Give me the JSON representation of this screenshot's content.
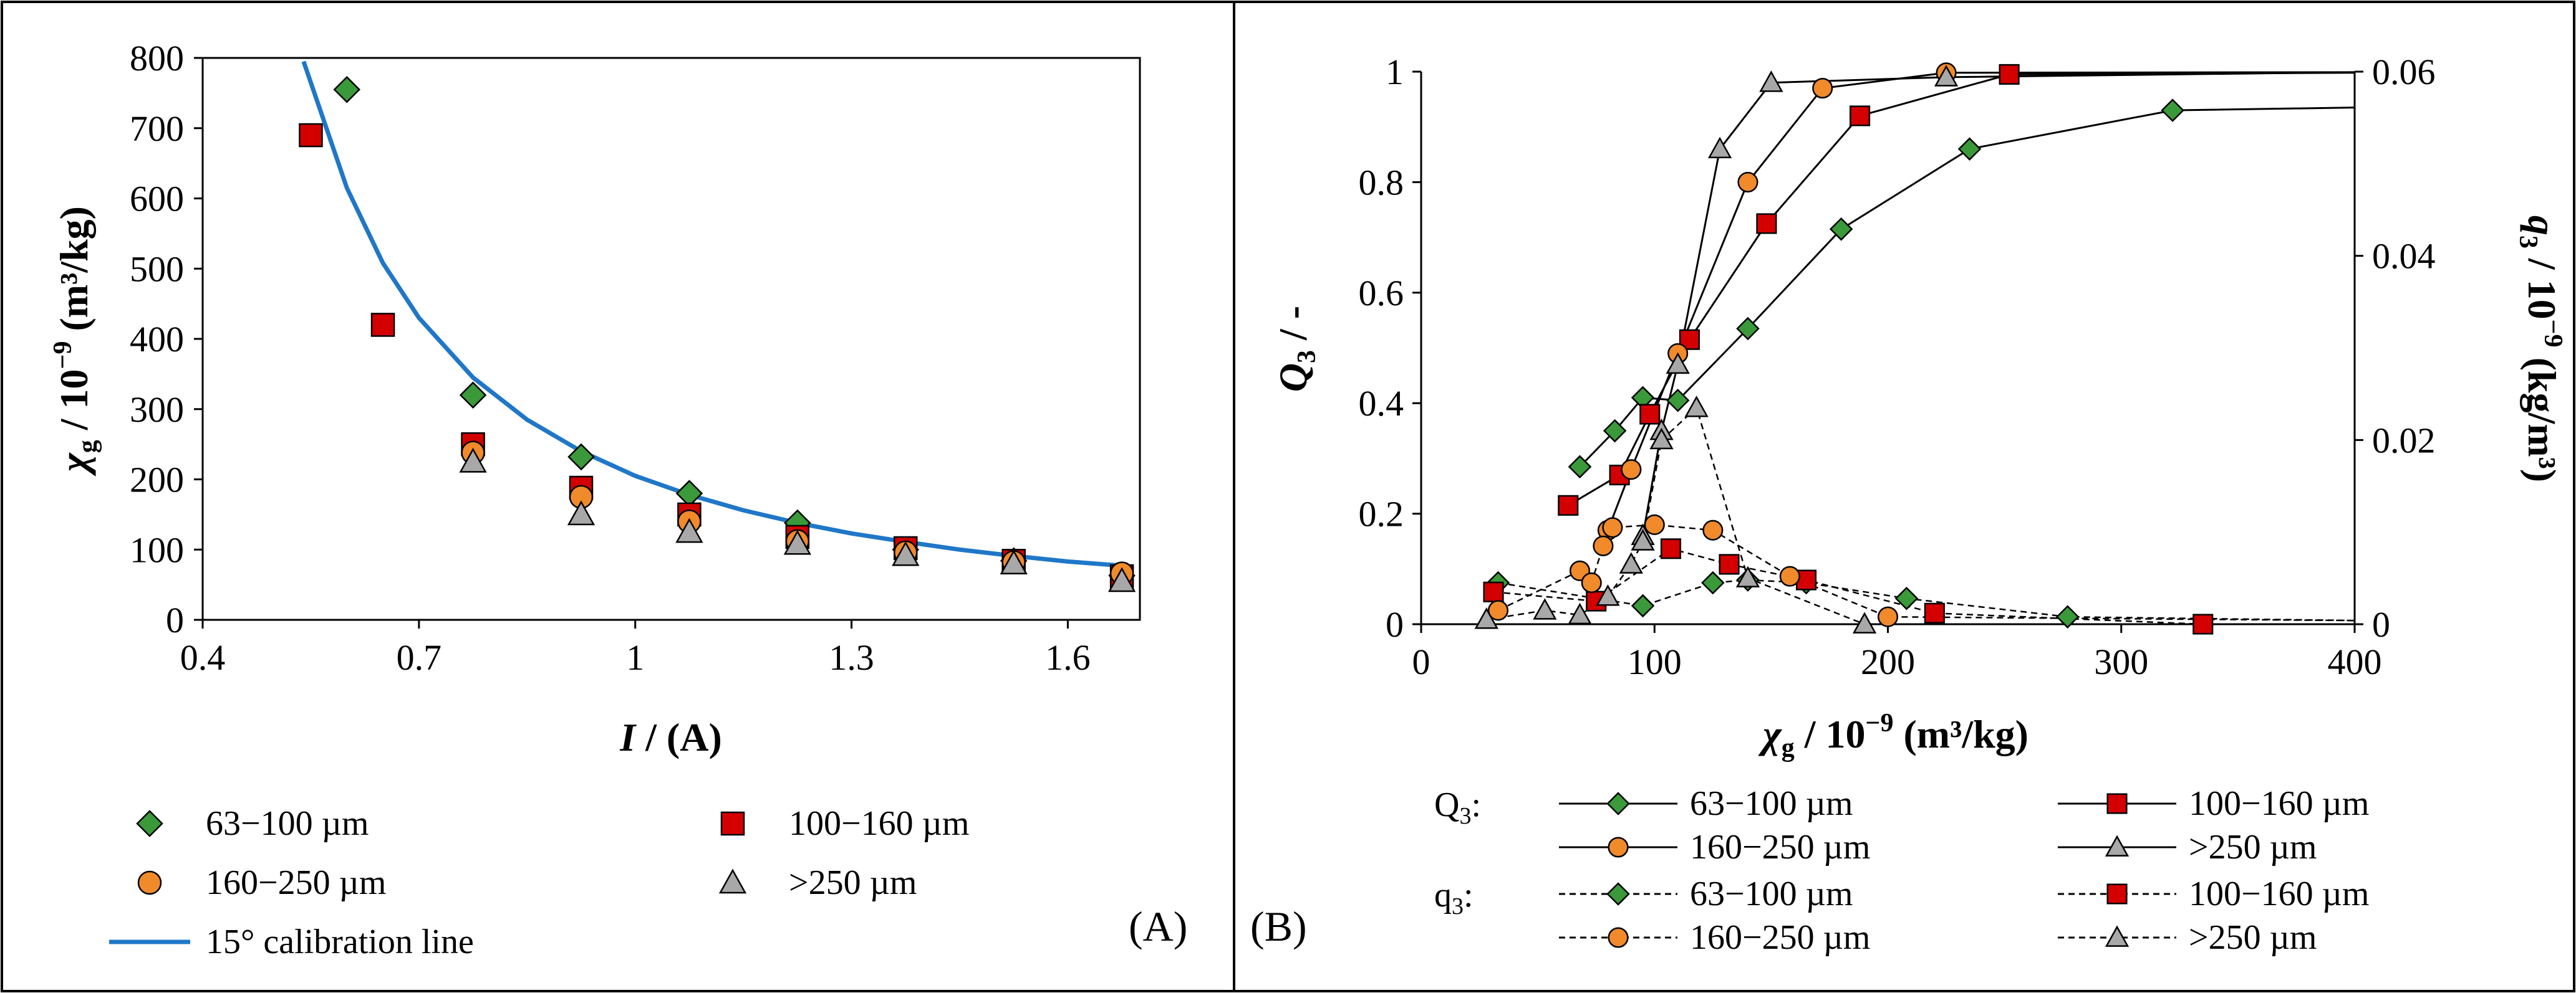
{
  "chart_data": [
    {
      "panel_label": "(A)",
      "type": "scatter",
      "xlabel_sym": "I",
      "xlabel_unit": " / (A)",
      "ylabel_sym": "χ",
      "ylabel_sub": "g",
      "ylabel_unit": " / 10",
      "ylabel_exp": "−9",
      "ylabel_tail": " (m³/kg)",
      "xlim": [
        0.4,
        1.7
      ],
      "ylim": [
        0,
        800
      ],
      "x_ticks": [
        "0.4",
        "0.7",
        "1",
        "1.3",
        "1.6"
      ],
      "y_ticks": [
        "0",
        "100",
        "200",
        "300",
        "400",
        "500",
        "600",
        "700",
        "800"
      ],
      "series": [
        {
          "name": "63−100 µm",
          "marker": "diamond",
          "color": "#3a9a3a",
          "x": [
            0.6,
            0.775,
            0.925,
            1.075,
            1.225,
            1.375,
            1.525,
            1.675
          ],
          "y": [
            755,
            320,
            232,
            180,
            138,
            100,
            84,
            63
          ]
        },
        {
          "name": "100−160 µm",
          "marker": "square",
          "color": "#d40000",
          "x": [
            0.55,
            0.65,
            0.775,
            0.925,
            1.075,
            1.225,
            1.375,
            1.525,
            1.675
          ],
          "y": [
            690,
            420,
            250,
            188,
            150,
            118,
            102,
            84,
            62
          ]
        },
        {
          "name": "160−250 µm",
          "marker": "circle",
          "color": "#f08a2a",
          "x": [
            0.775,
            0.925,
            1.075,
            1.225,
            1.375,
            1.525,
            1.675
          ],
          "y": [
            238,
            175,
            140,
            112,
            96,
            82,
            66
          ]
        },
        {
          "name": ">250 µm",
          "marker": "triangle",
          "color": "#a8a8a8",
          "x": [
            0.775,
            0.925,
            1.075,
            1.225,
            1.375,
            1.525,
            1.675
          ],
          "y": [
            225,
            150,
            125,
            108,
            92,
            80,
            55
          ]
        }
      ],
      "calibration": {
        "name": "15° calibration line",
        "color": "#1f77c8",
        "x": [
          0.54,
          0.6,
          0.65,
          0.7,
          0.775,
          0.85,
          0.925,
          1.0,
          1.075,
          1.15,
          1.225,
          1.3,
          1.375,
          1.45,
          1.525,
          1.6,
          1.69
        ],
        "y": [
          795,
          615,
          508,
          430,
          345,
          285,
          240,
          205,
          178,
          156,
          138,
          123,
          111,
          100,
          91,
          83,
          76
        ]
      }
    },
    {
      "panel_label": "(B)",
      "type": "line",
      "xlabel_sym": "χ",
      "xlabel_sub": "g",
      "xlabel_unit": " / 10",
      "xlabel_exp": "−9",
      "xlabel_tail": " (m³/kg)",
      "ylabel_left_sym": "Q",
      "ylabel_left_sub": "3",
      "ylabel_left_unit": " / -",
      "ylabel_right_sym": "q",
      "ylabel_right_sub": "3",
      "ylabel_right_unit": " / 10",
      "ylabel_right_exp": "−9",
      "ylabel_right_tail": " (kg/m³)",
      "xlim": [
        0,
        400
      ],
      "ylim_left": [
        0,
        1
      ],
      "ylim_right": [
        0,
        0.06
      ],
      "x_ticks": [
        "0",
        "100",
        "200",
        "300",
        "400"
      ],
      "y_left_ticks": [
        "0",
        "0.2",
        "0.4",
        "0.6",
        "0.8",
        "1"
      ],
      "y_right_ticks": [
        "0",
        "0.02",
        "0.04",
        "0.06"
      ],
      "legend_Q_label": "Q",
      "legend_Q_sub": "3",
      "legend_q_label": "q",
      "legend_q_sub": "3",
      "Q3": [
        {
          "name": "63−100 µm",
          "marker": "diamond",
          "color": "#3a9a3a",
          "x": [
            68,
            83,
            95,
            110,
            140,
            180,
            235,
            322,
            400
          ],
          "y": [
            0.285,
            0.35,
            0.41,
            0.405,
            0.535,
            0.715,
            0.86,
            0.93,
            0.935
          ]
        },
        {
          "name": "100−160 µm",
          "marker": "square",
          "color": "#d40000",
          "x": [
            63,
            85,
            98,
            115,
            148,
            188,
            252,
            400
          ],
          "y": [
            0.215,
            0.27,
            0.38,
            0.515,
            0.725,
            0.92,
            0.995,
            0.998
          ]
        },
        {
          "name": "160−250 µm",
          "marker": "circle",
          "color": "#f08a2a",
          "x": [
            80,
            90,
            110,
            140,
            172,
            225,
            400
          ],
          "y": [
            0.17,
            0.28,
            0.49,
            0.8,
            0.97,
            0.998,
            0.999
          ]
        },
        {
          "name": ">250 µm",
          "marker": "triangle",
          "color": "#a8a8a8",
          "x": [
            95,
            103,
            110,
            128,
            150,
            225,
            400
          ],
          "y": [
            0.16,
            0.35,
            0.47,
            0.86,
            0.98,
            0.99,
            0.999
          ]
        }
      ],
      "q3": [
        {
          "name": "63−100 µm",
          "marker": "diamond",
          "color": "#3a9a3a",
          "x": [
            33,
            95,
            125,
            140,
            165,
            208,
            277,
            400
          ],
          "y": [
            0.0045,
            0.002,
            0.0045,
            0.0048,
            0.0045,
            0.0028,
            0.0008,
            0.0004
          ]
        },
        {
          "name": "100−160 µm",
          "marker": "square",
          "color": "#d40000",
          "x": [
            31,
            75,
            107,
            132,
            165,
            220,
            335,
            400
          ],
          "y": [
            0.0035,
            0.0025,
            0.0082,
            0.0065,
            0.0048,
            0.0012,
            0.0,
            0.0
          ]
        },
        {
          "name": "160−250 µm",
          "marker": "circle",
          "color": "#f08a2a",
          "x": [
            33,
            68,
            73,
            78,
            82,
            100,
            125,
            158,
            200,
            400
          ],
          "y": [
            0.0015,
            0.0058,
            0.0045,
            0.0085,
            0.0105,
            0.0108,
            0.0102,
            0.0052,
            0.0008,
            0.0004
          ]
        },
        {
          "name": ">250 µm",
          "marker": "triangle",
          "color": "#a8a8a8",
          "x": [
            28,
            53,
            68,
            80,
            90,
            95,
            103,
            118,
            140,
            190,
            400
          ],
          "y": [
            0.0005,
            0.0015,
            0.001,
            0.003,
            0.0065,
            0.009,
            0.02,
            0.0235,
            0.005,
            0.0,
            0.0
          ]
        }
      ]
    }
  ]
}
